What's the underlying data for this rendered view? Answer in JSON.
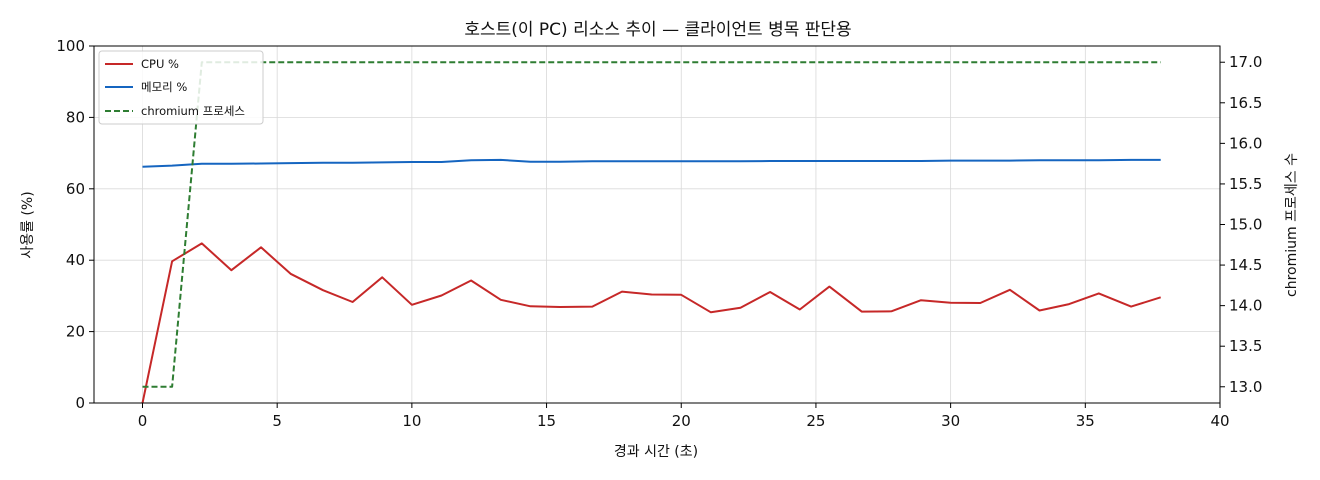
{
  "chart_data": {
    "type": "line",
    "title": "호스트(이 PC) 리소스 추이 — 클라이언트 병목 판단용",
    "xlabel": "경과 시간 (초)",
    "ylabel": "사용률 (%)",
    "ylabel_right": "chromium 프로세스 수",
    "xlim": [
      -1.8,
      40
    ],
    "ylim": [
      0,
      100
    ],
    "ylim_right": [
      12.8,
      17.2
    ],
    "x_ticks": [
      0,
      5,
      10,
      15,
      20,
      25,
      30,
      35,
      40
    ],
    "y_ticks": [
      0,
      20,
      40,
      60,
      80,
      100
    ],
    "y_ticks_right": [
      13.0,
      13.5,
      14.0,
      14.5,
      15.0,
      15.5,
      16.0,
      16.5,
      17.0
    ],
    "y_ticks_right_labels": [
      "13.0",
      "13.5",
      "14.0",
      "14.5",
      "15.0",
      "15.5",
      "16.0",
      "16.5",
      "17.0"
    ],
    "grid": true,
    "legend_position": "top-left",
    "x": [
      0.0,
      1.1,
      2.2,
      3.3,
      4.4,
      5.5,
      6.7,
      7.8,
      8.9,
      10.0,
      11.1,
      12.2,
      13.3,
      14.4,
      15.5,
      16.7,
      17.8,
      18.9,
      20.0,
      21.1,
      22.2,
      23.3,
      24.4,
      25.5,
      26.7,
      27.8,
      28.9,
      30.0,
      31.1,
      32.2,
      33.3,
      34.4,
      35.5,
      36.7,
      37.8
    ],
    "series": [
      {
        "name": "CPU %",
        "axis": "left",
        "color": "#c62828",
        "style": "solid",
        "values": [
          0,
          39.7,
          44.7,
          37.2,
          43.6,
          36.2,
          31.6,
          28.3,
          35.2,
          27.5,
          30.1,
          34.3,
          28.9,
          27.1,
          26.9,
          27.0,
          31.2,
          30.4,
          30.3,
          25.4,
          26.7,
          31.1,
          26.2,
          32.6,
          25.6,
          25.7,
          28.8,
          28.1,
          28.0,
          31.7,
          25.9,
          27.7,
          30.7,
          27.0,
          29.6
        ]
      },
      {
        "name": "메모리 %",
        "axis": "left",
        "color": "#1565c0",
        "style": "solid",
        "values": [
          66.2,
          66.5,
          67.0,
          67.0,
          67.1,
          67.2,
          67.3,
          67.3,
          67.4,
          67.5,
          67.5,
          68.0,
          68.1,
          67.6,
          67.6,
          67.7,
          67.7,
          67.7,
          67.7,
          67.7,
          67.7,
          67.8,
          67.8,
          67.8,
          67.8,
          67.8,
          67.8,
          67.9,
          67.9,
          67.9,
          68.0,
          68.0,
          68.0,
          68.1,
          68.1
        ]
      },
      {
        "name": "chromium 프로세스",
        "axis": "right",
        "color": "#2e7d32",
        "style": "dashed",
        "values": [
          13,
          13,
          17,
          17,
          17,
          17,
          17,
          17,
          17,
          17,
          17,
          17,
          17,
          17,
          17,
          17,
          17,
          17,
          17,
          17,
          17,
          17,
          17,
          17,
          17,
          17,
          17,
          17,
          17,
          17,
          17,
          17,
          17,
          17,
          17
        ]
      }
    ]
  }
}
